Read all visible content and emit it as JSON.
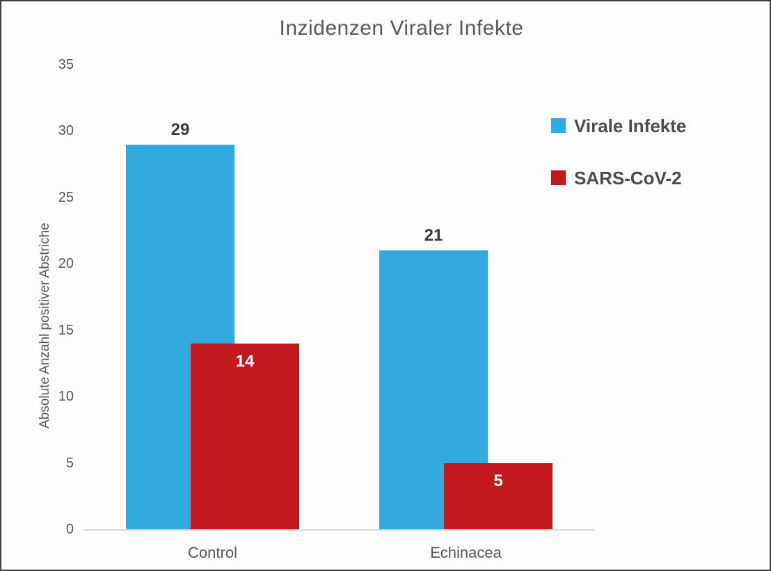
{
  "window": {
    "background": "#fdfdfd",
    "border_color": "#3f3f3f"
  },
  "chart_data": {
    "type": "bar",
    "title": "Inzidenzen Viraler Infekte",
    "xlabel": "",
    "ylabel": "Absolute Anzahl positiver Abstriche",
    "categories": [
      "Control",
      "Echinacea"
    ],
    "series": [
      {
        "name": "Virale Infekte",
        "color": "#33AADF",
        "values": [
          29,
          21
        ],
        "data_label_color": "#3a3a3a",
        "data_label_position": "above"
      },
      {
        "name": "SARS-CoV-2",
        "color": "#C1191E",
        "values": [
          14,
          5
        ],
        "data_label_color": "#ffffff",
        "data_label_position": "inside"
      }
    ],
    "ylim": [
      0,
      35
    ],
    "yticks": [
      0,
      5,
      10,
      15,
      20,
      25,
      30,
      35
    ],
    "grid": false,
    "legend_position": "right",
    "axis_color": "#d9d9d9",
    "text_color": "#595959"
  }
}
